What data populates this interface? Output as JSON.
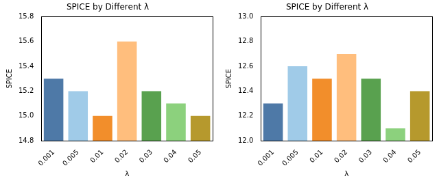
{
  "chart_data": [
    {
      "type": "bar",
      "title": "SPICE by Different λ",
      "x_label": "λ",
      "y_label": "SPICE",
      "categories": [
        "0.001",
        "0.005",
        "0.01",
        "0.02",
        "0.03",
        "0.04",
        "0.05"
      ],
      "values": [
        15.3,
        15.2,
        15.0,
        15.6,
        15.2,
        15.1,
        15.0
      ],
      "colors": [
        "#4e79a7",
        "#a0cbe8",
        "#f28e2b",
        "#ffbe7d",
        "#59a14f",
        "#8cd17d",
        "#b6992d"
      ],
      "ylim": [
        14.8,
        15.8
      ],
      "yticks": [
        14.8,
        {
          "value": 15,
          "label": "15.0"
        },
        15.2,
        15.4,
        15.6,
        15.8
      ],
      "grid": false
    },
    {
      "type": "bar",
      "title": "SPICE by Different λ",
      "x_label": "λ",
      "y_label": "SPICE",
      "categories": [
        "0.001",
        "0.005",
        "0.01",
        "0.02",
        "0.03",
        "0.04",
        "0.05"
      ],
      "values": [
        12.3,
        12.6,
        12.5,
        12.7,
        12.5,
        12.1,
        12.4
      ],
      "colors": [
        "#4e79a7",
        "#a0cbe8",
        "#f28e2b",
        "#ffbe7d",
        "#59a14f",
        "#8cd17d",
        "#b6992d"
      ],
      "ylim": [
        12,
        13
      ],
      "yticks": [
        {
          "value": 12,
          "label": "12.0"
        },
        12.2,
        12.4,
        12.6,
        12.8,
        {
          "value": 13,
          "label": "13.0"
        }
      ],
      "grid": false
    }
  ]
}
